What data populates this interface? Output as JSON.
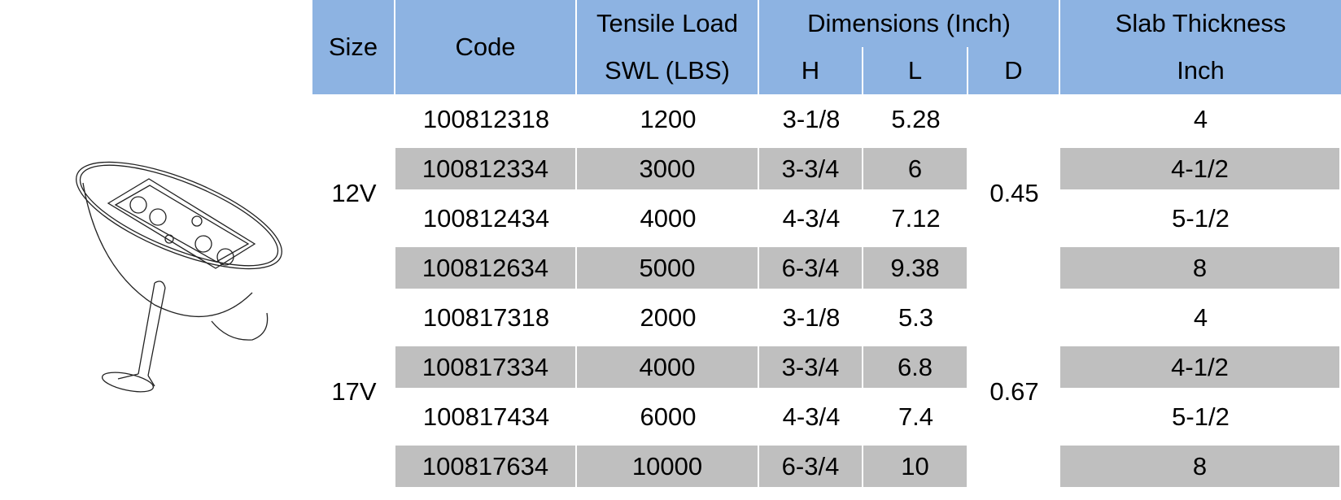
{
  "header": {
    "size": "Size",
    "code": "Code",
    "tensile_load": "Tensile Load",
    "swl": "SWL (LBS)",
    "dimensions": "Dimensions (Inch)",
    "h": "H",
    "l": "L",
    "d": "D",
    "slab_thickness": "Slab Thickness",
    "inch": "Inch"
  },
  "groups": [
    {
      "size": "12V",
      "d": "0.45",
      "rows": [
        {
          "code": "100812318",
          "swl": "1200",
          "h": "3-1/8",
          "l": "5.28",
          "slab": "4"
        },
        {
          "code": "100812334",
          "swl": "3000",
          "h": "3-3/4",
          "l": "6",
          "slab": "4-1/2"
        },
        {
          "code": "100812434",
          "swl": "4000",
          "h": "4-3/4",
          "l": "7.12",
          "slab": "5-1/2"
        },
        {
          "code": "100812634",
          "swl": "5000",
          "h": "6-3/4",
          "l": "9.38",
          "slab": "8"
        }
      ]
    },
    {
      "size": "17V",
      "d": "0.67",
      "rows": [
        {
          "code": "100817318",
          "swl": "2000",
          "h": "3-1/8",
          "l": "5.3",
          "slab": "4"
        },
        {
          "code": "100817334",
          "swl": "4000",
          "h": "3-3/4",
          "l": "6.8",
          "slab": "4-1/2"
        },
        {
          "code": "100817434",
          "swl": "6000",
          "h": "4-3/4",
          "l": "7.4",
          "slab": "5-1/2"
        },
        {
          "code": "100817634",
          "swl": "10000",
          "h": "6-3/4",
          "l": "10",
          "slab": "8"
        }
      ]
    }
  ],
  "colors": {
    "header_bg": "#8db3e2",
    "stripe_bg": "#bfbfbf"
  }
}
